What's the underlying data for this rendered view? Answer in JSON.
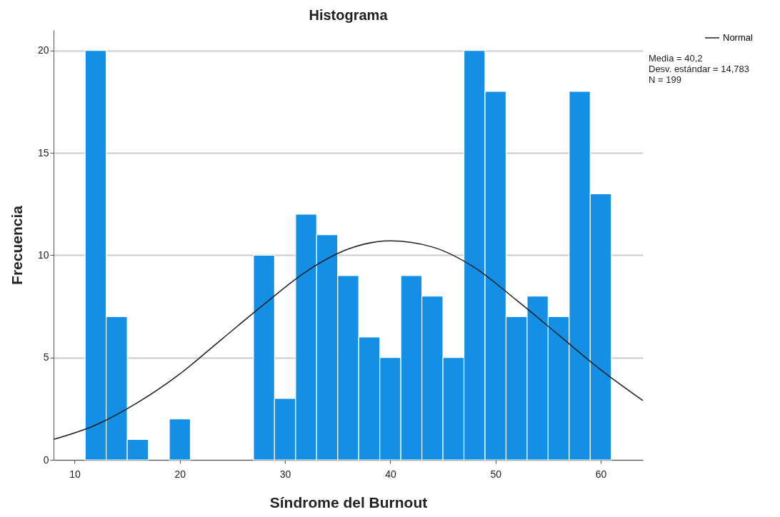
{
  "chart_data": {
    "type": "histogram",
    "title": "Histograma",
    "xlabel": "Síndrome del Burnout",
    "ylabel": "Frecuencia",
    "bins": [
      11,
      13,
      15,
      17,
      19,
      21,
      23,
      25,
      27,
      29,
      31,
      33,
      35,
      37,
      39,
      41,
      43,
      45,
      47,
      49,
      51,
      53,
      55,
      57,
      59,
      61
    ],
    "values": [
      20,
      7,
      1,
      0,
      2,
      0,
      0,
      0,
      10,
      3,
      12,
      11,
      9,
      6,
      5,
      9,
      8,
      5,
      20,
      18,
      7,
      8,
      7,
      18,
      13
    ],
    "color": "#1390e6",
    "series": [
      {
        "name": "Normal",
        "type": "line",
        "color": "#1f1f1f",
        "x": [
          8,
          12,
          16,
          20,
          24,
          28,
          32,
          36,
          40,
          44,
          48,
          52,
          56,
          60,
          64
        ],
        "values": [
          1.0,
          1.7,
          2.8,
          4.2,
          5.9,
          7.6,
          9.2,
          10.3,
          10.7,
          10.4,
          9.4,
          7.8,
          6.1,
          4.4,
          2.9
        ]
      }
    ],
    "xlim": [
      8,
      64
    ],
    "xticks": [
      10,
      20,
      30,
      40,
      50,
      60
    ],
    "ylim": [
      0,
      21
    ],
    "yticks": [
      0,
      5,
      10,
      15,
      20
    ],
    "grid": "y",
    "legend": "top right",
    "marker": "none",
    "line_style": "solid",
    "annotations": [
      "Media = 40,2",
      "Desv. estándar = 14,783",
      "N = 199"
    ]
  }
}
